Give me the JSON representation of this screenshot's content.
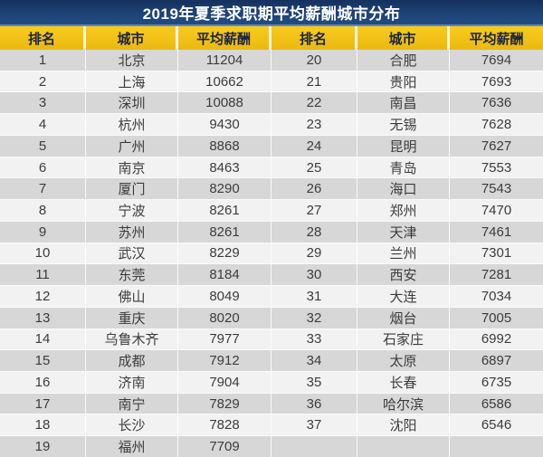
{
  "title": "2019年夏季求职期平均薪酬城市分布",
  "chart_data": {
    "type": "table",
    "title": "2019年夏季求职期平均薪酬城市分布",
    "columns": [
      "排名",
      "城市",
      "平均薪酬",
      "排名",
      "城市",
      "平均薪酬"
    ],
    "left_rows": [
      [
        "1",
        "北京",
        "11204"
      ],
      [
        "2",
        "上海",
        "10662"
      ],
      [
        "3",
        "深圳",
        "10088"
      ],
      [
        "4",
        "杭州",
        "9430"
      ],
      [
        "5",
        "广州",
        "8868"
      ],
      [
        "6",
        "南京",
        "8463"
      ],
      [
        "7",
        "厦门",
        "8290"
      ],
      [
        "8",
        "宁波",
        "8261"
      ],
      [
        "9",
        "苏州",
        "8261"
      ],
      [
        "10",
        "武汉",
        "8229"
      ],
      [
        "11",
        "东莞",
        "8184"
      ],
      [
        "12",
        "佛山",
        "8049"
      ],
      [
        "13",
        "重庆",
        "8020"
      ],
      [
        "14",
        "乌鲁木齐",
        "7977"
      ],
      [
        "15",
        "成都",
        "7912"
      ],
      [
        "16",
        "济南",
        "7904"
      ],
      [
        "17",
        "南宁",
        "7829"
      ],
      [
        "18",
        "长沙",
        "7828"
      ],
      [
        "19",
        "福州",
        "7709"
      ]
    ],
    "right_rows": [
      [
        "20",
        "合肥",
        "7694"
      ],
      [
        "21",
        "贵阳",
        "7693"
      ],
      [
        "22",
        "南昌",
        "7636"
      ],
      [
        "23",
        "无锡",
        "7628"
      ],
      [
        "24",
        "昆明",
        "7627"
      ],
      [
        "25",
        "青岛",
        "7553"
      ],
      [
        "26",
        "海口",
        "7543"
      ],
      [
        "27",
        "郑州",
        "7470"
      ],
      [
        "28",
        "天津",
        "7461"
      ],
      [
        "29",
        "兰州",
        "7301"
      ],
      [
        "30",
        "西安",
        "7281"
      ],
      [
        "31",
        "大连",
        "7034"
      ],
      [
        "32",
        "烟台",
        "7005"
      ],
      [
        "33",
        "石家庄",
        "6992"
      ],
      [
        "34",
        "太原",
        "6897"
      ],
      [
        "35",
        "长春",
        "6735"
      ],
      [
        "36",
        "哈尔滨",
        "6586"
      ],
      [
        "37",
        "沈阳",
        "6546"
      ],
      [
        "",
        "",
        ""
      ]
    ]
  },
  "colors": {
    "title_bar_bg": "#1E4478",
    "title_text": "#FFFFFF",
    "header_bg": "#F1C117",
    "header_text": "#1B2440",
    "row_odd_bg": "#D7D7D7",
    "row_even_bg": "#F2F2F2",
    "body_text": "#3C3C3C",
    "divider_blue": "#5E86B8"
  }
}
